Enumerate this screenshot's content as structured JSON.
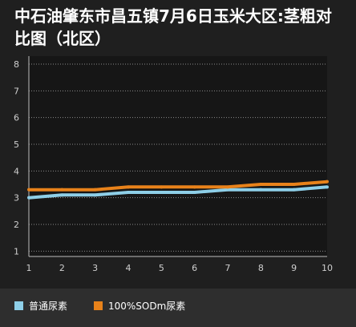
{
  "chart_data": {
    "type": "line",
    "title_line1": "中石油肇东市昌五镇7月6日玉米大区:茎粗对",
    "title_line2": "比图（北区）",
    "xlabel": "",
    "ylabel": "",
    "x": [
      1,
      2,
      3,
      4,
      5,
      6,
      7,
      8,
      9,
      10
    ],
    "y_ticks": [
      1,
      2,
      3,
      4,
      5,
      6,
      7,
      8
    ],
    "ylim": [
      0.8,
      8.3
    ],
    "grid": true,
    "legend_position": "bottom",
    "series": [
      {
        "name": "普通尿素",
        "color": "#8ecfe8",
        "values": [
          3.0,
          3.1,
          3.1,
          3.2,
          3.2,
          3.2,
          3.3,
          3.3,
          3.3,
          3.4
        ]
      },
      {
        "name": "100%SODm尿素",
        "color": "#e8821a",
        "values": [
          3.3,
          3.3,
          3.3,
          3.4,
          3.4,
          3.4,
          3.4,
          3.5,
          3.5,
          3.6
        ]
      }
    ]
  }
}
